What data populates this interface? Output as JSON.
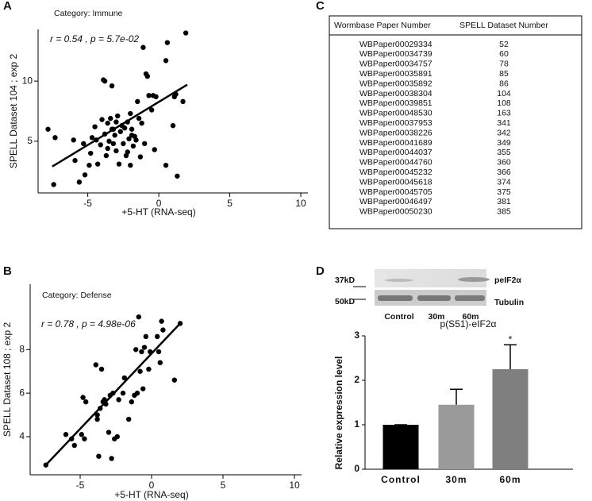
{
  "chart_data": [
    {
      "type": "scatter",
      "panel": "A",
      "title": "Category: Immune",
      "annotation": "r = 0.54 , p = 5.7e-02",
      "xlabel": "+5-HT (RNA-seq)",
      "ylabel": "SPELL Dataset 104 ; exp 2",
      "xlim": [
        -8.5,
        10.5
      ],
      "ylim": [
        0.7,
        14.3
      ],
      "xticks": [
        -5,
        0,
        5,
        10
      ],
      "yticks": [
        5,
        10
      ],
      "color": "#000000",
      "x": [
        -7.8,
        -7.4,
        -7.3,
        -5.6,
        -5.2,
        -5.9,
        -6.0,
        -5.3,
        -4.9,
        -4.8,
        -4.7,
        -4.5,
        -4.4,
        -4.3,
        -4.1,
        -4.0,
        -3.9,
        -3.8,
        -3.8,
        -3.7,
        -3.6,
        -3.6,
        -3.5,
        -3.4,
        -3.3,
        -3.3,
        -3.2,
        -3.2,
        -3.1,
        -3.0,
        -3.0,
        -2.9,
        -2.8,
        -2.7,
        -2.6,
        -2.5,
        -2.4,
        -2.3,
        -2.2,
        -2.2,
        -2.1,
        -2.0,
        -2.0,
        -1.9,
        -1.9,
        -1.8,
        -1.7,
        -1.6,
        -1.5,
        -1.4,
        -1.3,
        -1.2,
        -1.1,
        -1.0,
        -0.9,
        -0.8,
        -0.7,
        -0.5,
        -0.4,
        -0.3,
        -0.2,
        0.5,
        0.5,
        0.6,
        1.0,
        1.1,
        1.2,
        1.3,
        1.7,
        1.9
      ],
      "values": [
        6.0,
        1.4,
        5.3,
        1.6,
        2.2,
        3.4,
        5.1,
        4.8,
        3.0,
        4.0,
        5.3,
        6.2,
        5.1,
        3.1,
        4.7,
        6.8,
        10.1,
        10.0,
        5.6,
        3.8,
        4.4,
        6.5,
        5.0,
        6.9,
        9.6,
        6.0,
        6.0,
        4.8,
        5.5,
        4.2,
        6.6,
        7.1,
        3.1,
        5.8,
        6.3,
        4.8,
        6.1,
        3.8,
        4.1,
        6.6,
        5.2,
        7.3,
        3.0,
        6.0,
        5.5,
        4.6,
        5.4,
        5.1,
        8.3,
        6.9,
        3.7,
        6.5,
        12.8,
        4.8,
        10.6,
        10.4,
        8.8,
        7.6,
        8.8,
        4.3,
        8.7,
        11.7,
        3.0,
        13.2,
        6.3,
        8.7,
        8.9,
        2.1,
        8.3,
        14.0
      ],
      "fit": {
        "x": [
          -7.5,
          2.0
        ],
        "y": [
          2.9,
          9.7
        ]
      }
    },
    {
      "type": "scatter",
      "panel": "B",
      "title": "Category: Defense",
      "annotation": "r = 0.78 , p = 4.98e-06",
      "xlabel": "+5-HT (RNA-seq)",
      "ylabel": "SPELL Dataset 108 ; exp 2",
      "xlim": [
        -8.5,
        10.5
      ],
      "ylim": [
        2.25,
        11
      ],
      "xticks": [
        -5,
        0,
        5,
        10
      ],
      "yticks": [
        4,
        6,
        8
      ],
      "color": "#000000",
      "x": [
        -7.4,
        -6.0,
        -5.6,
        -5.4,
        -4.9,
        -4.8,
        -4.7,
        -4.6,
        -3.9,
        -3.8,
        -3.8,
        -3.7,
        -3.6,
        -3.5,
        -3.4,
        -3.3,
        -3.2,
        -3.0,
        -2.9,
        -2.8,
        -2.7,
        -2.6,
        -2.4,
        -2.3,
        -2.0,
        -1.9,
        -1.6,
        -1.4,
        -1.2,
        -1.1,
        -1.0,
        -0.9,
        -0.8,
        -0.7,
        -0.6,
        -0.5,
        -0.4,
        -0.2,
        -0.1,
        0.4,
        0.5,
        0.6,
        0.7,
        0.8,
        1.6,
        2.0
      ],
      "values": [
        2.7,
        4.1,
        3.9,
        3.6,
        4.1,
        5.8,
        3.9,
        5.6,
        7.3,
        5.0,
        4.8,
        3.1,
        5.3,
        7.1,
        5.6,
        5.7,
        5.5,
        4.2,
        5.9,
        3.0,
        6.0,
        3.9,
        4.0,
        5.7,
        6.0,
        6.7,
        4.8,
        5.6,
        5.9,
        8.0,
        6.0,
        9.5,
        7.0,
        7.9,
        6.2,
        8.1,
        8.6,
        7.1,
        7.9,
        8.6,
        7.9,
        7.4,
        9.3,
        8.9,
        6.6,
        9.2
      ],
      "fit": {
        "x": [
          -7.4,
          2.0
        ],
        "y": [
          2.7,
          9.2
        ]
      }
    },
    {
      "type": "bar",
      "title": "p(S51)-eIF2α",
      "ylabel": "Relative expression level",
      "categories": [
        "Control",
        "30m",
        "60m"
      ],
      "values": [
        1,
        1.45,
        2.25
      ],
      "errors": [
        0,
        0.35,
        0.55
      ],
      "colors": [
        "#000000",
        "#9a9a9a",
        "#7f7f7f"
      ],
      "annotations": [
        null,
        null,
        "*"
      ],
      "ylim": [
        0,
        3
      ],
      "yticks": [
        0,
        1,
        2,
        3
      ]
    }
  ],
  "table": {
    "panel": "C",
    "columns": [
      "Wormbase Paper Number",
      "SPELL Dataset Number"
    ],
    "rows": [
      [
        "WBPaper00029334",
        52
      ],
      [
        "WBPaper00034739",
        60
      ],
      [
        "WBPaper00034757",
        78
      ],
      [
        "WBPaper00035891",
        85
      ],
      [
        "WBPaper00035892",
        86
      ],
      [
        "WBPaper00038304",
        104
      ],
      [
        "WBPaper00039851",
        108
      ],
      [
        "WBPaper00048530",
        163
      ],
      [
        "WBPaper00037953",
        341
      ],
      [
        "WBPaper00038226",
        342
      ],
      [
        "WBPaper00041689",
        349
      ],
      [
        "WBPaper00044037",
        355
      ],
      [
        "WBPaper00044760",
        360
      ],
      [
        "WBPaper00045232",
        366
      ],
      [
        "WBPaper00045618",
        374
      ],
      [
        "WBPaper00045705",
        375
      ],
      [
        "WBPaper00046497",
        381
      ],
      [
        "WBPaper00050230",
        385
      ]
    ]
  },
  "blot": {
    "panel": "D",
    "markers": [
      "37kD",
      "50kD"
    ],
    "bands": [
      "peIF2α",
      "Tubulin"
    ],
    "lanes": [
      "Control",
      "30m",
      "60m"
    ]
  }
}
